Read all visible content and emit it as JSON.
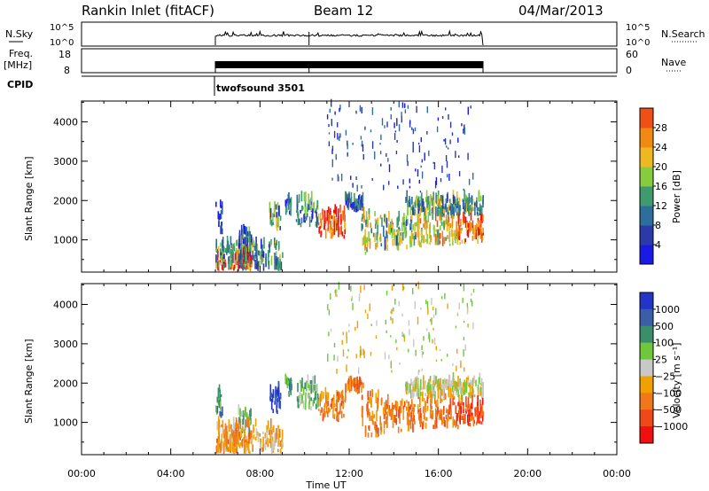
{
  "header": {
    "station": "Rankin Inlet (fitACF)",
    "beam": "Beam 12",
    "date": "04/Mar/2013"
  },
  "top_panels": {
    "nsky_label": "N.Sky",
    "nsky_ticks": [
      "10^5",
      "10^0"
    ],
    "nsearch_label": "N.Search",
    "freq_label_1": "Freq.",
    "freq_label_2": "[MHz]",
    "freq_ticks": [
      "18",
      "8"
    ],
    "nave_ticks": [
      "60",
      "0"
    ],
    "nave_label": "Nave",
    "cpid_label": "CPID",
    "cpid_value": "twofsound 3501"
  },
  "colors": {
    "power": [
      "#1a1ae6",
      "#2a3aa8",
      "#2e6e9c",
      "#3f9a6e",
      "#86cc3f",
      "#f0b820",
      "#f08a10",
      "#f05018",
      "#f01010"
    ],
    "velocity": [
      "#2335c8",
      "#3a5fa8",
      "#3a8f6a",
      "#6ec83a",
      "#c8c8c8",
      "#f0a000",
      "#f07818",
      "#f04818",
      "#f01010"
    ]
  },
  "chart_data": [
    {
      "type": "heatmap",
      "name": "power",
      "ylabel": "Slant Range [km]",
      "yticks": [
        1000,
        2000,
        3000,
        4000
      ],
      "ylim": [
        180,
        4530
      ],
      "xlim": [
        0,
        24
      ],
      "colorbar_label": "Power [dB]",
      "colorbar_ticks": [
        "4",
        "8",
        "12",
        "16",
        "20",
        "24",
        "28"
      ],
      "colorbar_range": [
        0,
        30
      ]
    },
    {
      "type": "heatmap",
      "name": "velocity",
      "xlabel": "Time UT",
      "ylabel": "Slant Range [km]",
      "yticks": [
        1000,
        2000,
        3000,
        4000
      ],
      "ylim": [
        180,
        4530
      ],
      "xlim": [
        0,
        24
      ],
      "xticks": [
        "00:00",
        "04:00",
        "08:00",
        "12:00",
        "16:00",
        "20:00",
        "00:00"
      ],
      "colorbar_label": "Velocity [m s⁻¹]",
      "colorbar_ticks": [
        "1000",
        "500",
        "100",
        "25",
        "−25",
        "−100",
        "−500",
        "−1000"
      ]
    }
  ],
  "data_blobs": [
    {
      "t0": 6.0,
      "t1": 6.3,
      "r0": 1100,
      "r1": 1900,
      "p": 6,
      "v": 2
    },
    {
      "t0": 6.0,
      "t1": 7.6,
      "r0": 200,
      "r1": 650,
      "p": 26,
      "v": 6
    },
    {
      "t0": 7.0,
      "t1": 7.6,
      "r0": 700,
      "r1": 1200,
      "p": 8,
      "v": 3
    },
    {
      "t0": 8.4,
      "t1": 8.9,
      "r0": 1200,
      "r1": 1800,
      "p": 12,
      "v": 0
    },
    {
      "t0": 9.1,
      "t1": 9.4,
      "r0": 1600,
      "r1": 2000,
      "p": 8,
      "v": 2
    },
    {
      "t0": 9.6,
      "t1": 10.6,
      "r0": 1300,
      "r1": 2000,
      "p": 10,
      "v": 3
    },
    {
      "t0": 10.6,
      "t1": 11.8,
      "r0": 1000,
      "r1": 1700,
      "p": 24,
      "v": 6
    },
    {
      "t0": 11.8,
      "t1": 12.6,
      "r0": 1700,
      "r1": 2000,
      "p": 6,
      "v": 6
    },
    {
      "t0": 12.5,
      "t1": 13.4,
      "r0": 600,
      "r1": 1700,
      "p": 16,
      "v": 6
    },
    {
      "t0": 13.4,
      "t1": 15.0,
      "r0": 700,
      "r1": 1500,
      "p": 12,
      "v": 6
    },
    {
      "t0": 15.0,
      "t1": 17.0,
      "r0": 800,
      "r1": 1600,
      "p": 18,
      "v": 6
    },
    {
      "t0": 14.5,
      "t1": 18.0,
      "r0": 1600,
      "r1": 2000,
      "p": 12,
      "v": 4
    },
    {
      "t0": 16.8,
      "t1": 18.0,
      "r0": 900,
      "r1": 1500,
      "p": 24,
      "v": 7
    },
    {
      "t0": 6.0,
      "t1": 9.0,
      "r0": 200,
      "r1": 900,
      "p": 10,
      "v": 5
    }
  ],
  "sparse_blobs": [
    {
      "t0": 11.0,
      "t1": 17.6,
      "r0": 2200,
      "r1": 4400
    }
  ]
}
